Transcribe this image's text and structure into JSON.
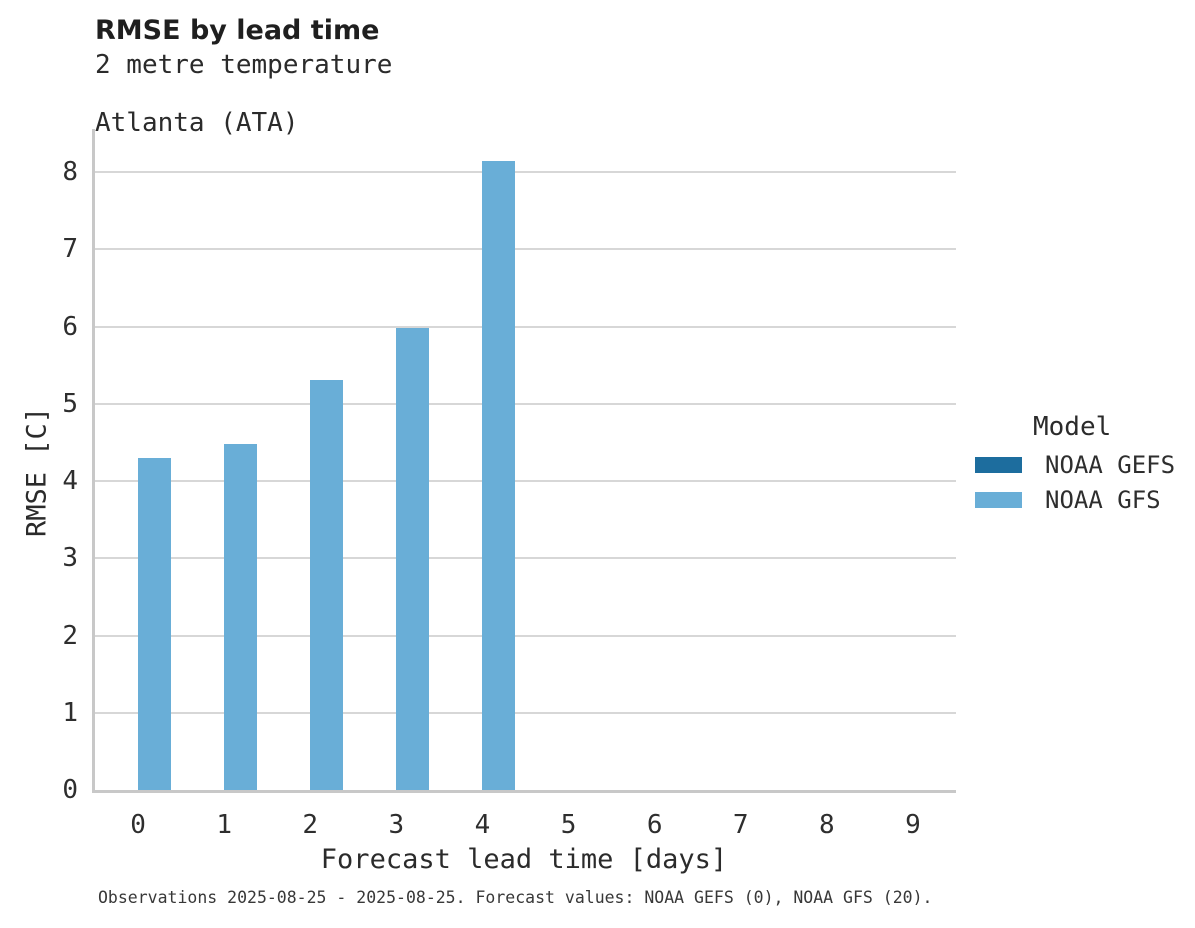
{
  "header": {
    "title": "RMSE by lead time",
    "subtitle_line1": "2 metre temperature",
    "subtitle_line2": "Atlanta (ATA)"
  },
  "chart_data": {
    "type": "bar",
    "title": "RMSE by lead time",
    "subtitle": [
      "2 metre temperature",
      "Atlanta (ATA)"
    ],
    "xlabel": "Forecast lead time [days]",
    "ylabel": "RMSE [C]",
    "categories": [
      0,
      1,
      2,
      3,
      4,
      5,
      6,
      7,
      8,
      9
    ],
    "series": [
      {
        "name": "NOAA GEFS",
        "color": "#1d6d9e",
        "values": [
          null,
          null,
          null,
          null,
          null,
          null,
          null,
          null,
          null,
          null
        ]
      },
      {
        "name": "NOAA GFS",
        "color": "#69aed7",
        "values": [
          4.3,
          4.48,
          5.31,
          5.99,
          8.14,
          null,
          null,
          null,
          null,
          null
        ]
      }
    ],
    "ylim": [
      0,
      8.56
    ],
    "yticks": [
      0,
      1,
      2,
      3,
      4,
      5,
      6,
      7,
      8
    ],
    "grid": "horizontal",
    "legend_title": "Model",
    "legend_position": "right-center"
  },
  "legend": {
    "title": "Model",
    "items": [
      {
        "label": "NOAA GEFS",
        "color": "#1d6d9e"
      },
      {
        "label": "NOAA GFS",
        "color": "#69aed7"
      }
    ]
  },
  "caption": "Observations 2025-08-25 - 2025-08-25. Forecast values: NOAA GEFS (0), NOAA GFS (20)."
}
